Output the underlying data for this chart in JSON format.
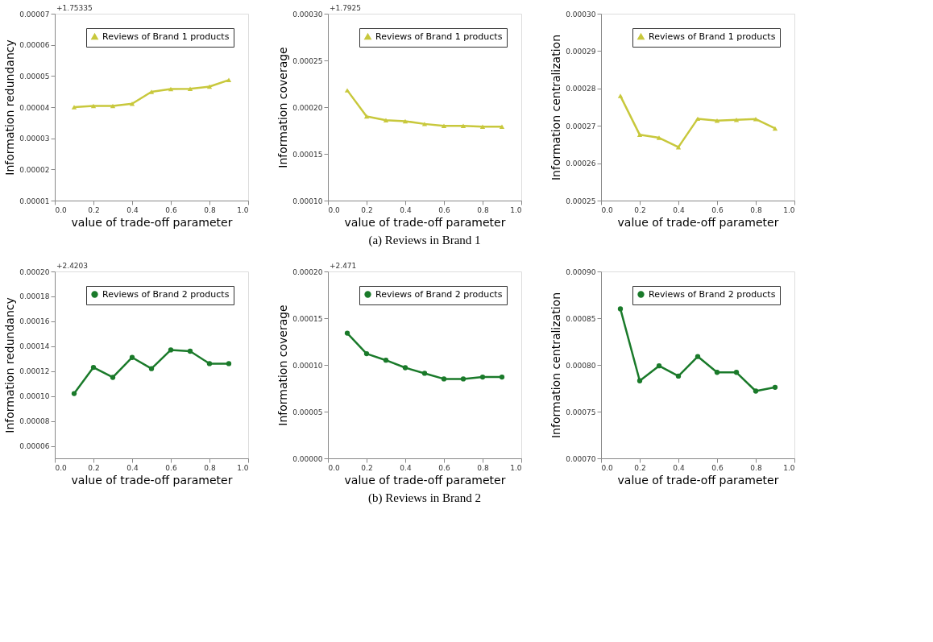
{
  "chart_data": [
    {
      "type": "line",
      "xlabel": "value of trade-off parameter",
      "ylabel": "Information redundancy",
      "annotations": [
        "+1.75335"
      ],
      "x": [
        0.1,
        0.2,
        0.3,
        0.4,
        0.5,
        0.6,
        0.7,
        0.8,
        0.9
      ],
      "series": [
        {
          "name": "Reviews of Brand 1 products",
          "color": "#c8c83c",
          "values": [
            4e-05,
            4.04e-05,
            4.04e-05,
            4.11e-05,
            4.49e-05,
            4.58e-05,
            4.59e-05,
            4.66e-05,
            4.87e-05
          ]
        }
      ],
      "xlim": [
        0,
        1
      ],
      "xticks": [
        {
          "value": 0,
          "label": "0.0"
        },
        {
          "value": 0.2,
          "label": "0.2"
        },
        {
          "value": 0.4,
          "label": "0.4"
        },
        {
          "value": 0.6,
          "label": "0.6"
        },
        {
          "value": 0.8,
          "label": "0.8"
        },
        {
          "value": 1,
          "label": "1.0"
        }
      ],
      "ylim": [
        1e-05,
        7e-05
      ],
      "yticks": [
        {
          "value": 1e-05,
          "label": "0.00001"
        },
        {
          "value": 2e-05,
          "label": "0.00002"
        },
        {
          "value": 3e-05,
          "label": "0.00003"
        },
        {
          "value": 4e-05,
          "label": "0.00004"
        },
        {
          "value": 5e-05,
          "label": "0.00005"
        },
        {
          "value": 6e-05,
          "label": "0.00006"
        },
        {
          "value": 7e-05,
          "label": "0.00007"
        }
      ],
      "grid": false,
      "legend": "top right",
      "marker": "triangle",
      "line_style": "solid"
    },
    {
      "type": "line",
      "title": "(a) Reviews in Brand 1",
      "xlabel": "value of trade-off parameter",
      "ylabel": "Information coverage",
      "annotations": [
        "+1.7925"
      ],
      "x": [
        0.1,
        0.2,
        0.3,
        0.4,
        0.5,
        0.6,
        0.7,
        0.8,
        0.9
      ],
      "series": [
        {
          "name": "Reviews of Brand 1 products",
          "color": "#c8c83c",
          "values": [
            0.000218,
            0.00019,
            0.000186,
            0.000185,
            0.000182,
            0.00018,
            0.00018,
            0.000179,
            0.000179
          ]
        }
      ],
      "xlim": [
        0,
        1
      ],
      "xticks": [
        {
          "value": 0,
          "label": "0.0"
        },
        {
          "value": 0.2,
          "label": "0.2"
        },
        {
          "value": 0.4,
          "label": "0.4"
        },
        {
          "value": 0.6,
          "label": "0.6"
        },
        {
          "value": 0.8,
          "label": "0.8"
        },
        {
          "value": 1,
          "label": "1.0"
        }
      ],
      "ylim": [
        0.0001,
        0.0003
      ],
      "yticks": [
        {
          "value": 0.0001,
          "label": "0.00010"
        },
        {
          "value": 0.00015,
          "label": "0.00015"
        },
        {
          "value": 0.0002,
          "label": "0.00020"
        },
        {
          "value": 0.00025,
          "label": "0.00025"
        },
        {
          "value": 0.0003,
          "label": "0.00030"
        }
      ],
      "grid": false,
      "legend": "top right",
      "marker": "triangle",
      "line_style": "solid"
    },
    {
      "type": "line",
      "xlabel": "value of trade-off parameter",
      "ylabel": "Information centralization",
      "x": [
        0.1,
        0.2,
        0.3,
        0.4,
        0.5,
        0.6,
        0.7,
        0.8,
        0.9
      ],
      "series": [
        {
          "name": "Reviews of Brand 1 products",
          "color": "#c8c83c",
          "values": [
            0.000278,
            0.0002676,
            0.0002668,
            0.0002643,
            0.0002719,
            0.0002714,
            0.0002716,
            0.0002718,
            0.0002693
          ]
        }
      ],
      "xlim": [
        0,
        1
      ],
      "xticks": [
        {
          "value": 0,
          "label": "0.0"
        },
        {
          "value": 0.2,
          "label": "0.2"
        },
        {
          "value": 0.4,
          "label": "0.4"
        },
        {
          "value": 0.6,
          "label": "0.6"
        },
        {
          "value": 0.8,
          "label": "0.8"
        },
        {
          "value": 1,
          "label": "1.0"
        }
      ],
      "ylim": [
        0.00025,
        0.0003
      ],
      "yticks": [
        {
          "value": 0.00025,
          "label": "0.00025"
        },
        {
          "value": 0.00026,
          "label": "0.00026"
        },
        {
          "value": 0.00027,
          "label": "0.00027"
        },
        {
          "value": 0.00028,
          "label": "0.00028"
        },
        {
          "value": 0.00029,
          "label": "0.00029"
        },
        {
          "value": 0.0003,
          "label": "0.00030"
        }
      ],
      "grid": false,
      "legend": "top right",
      "marker": "triangle",
      "line_style": "solid"
    },
    {
      "type": "line",
      "xlabel": "value of trade-off parameter",
      "ylabel": "Information redundancy",
      "annotations": [
        "+2.4203"
      ],
      "x": [
        0.1,
        0.2,
        0.3,
        0.4,
        0.5,
        0.6,
        0.7,
        0.8,
        0.9
      ],
      "series": [
        {
          "name": "Reviews of Brand 2 products",
          "color": "#1a7a2a",
          "values": [
            0.000102,
            0.000123,
            0.000115,
            0.000131,
            0.000122,
            0.000137,
            0.000136,
            0.000126,
            0.000126
          ]
        }
      ],
      "xlim": [
        0,
        1
      ],
      "xticks": [
        {
          "value": 0,
          "label": "0.0"
        },
        {
          "value": 0.2,
          "label": "0.2"
        },
        {
          "value": 0.4,
          "label": "0.4"
        },
        {
          "value": 0.6,
          "label": "0.6"
        },
        {
          "value": 0.8,
          "label": "0.8"
        },
        {
          "value": 1,
          "label": "1.0"
        }
      ],
      "ylim": [
        5e-05,
        0.0002
      ],
      "yticks": [
        {
          "value": 6e-05,
          "label": "0.00006"
        },
        {
          "value": 8e-05,
          "label": "0.00008"
        },
        {
          "value": 0.0001,
          "label": "0.00010"
        },
        {
          "value": 0.00012,
          "label": "0.00012"
        },
        {
          "value": 0.00014,
          "label": "0.00014"
        },
        {
          "value": 0.00016,
          "label": "0.00016"
        },
        {
          "value": 0.00018,
          "label": "0.00018"
        },
        {
          "value": 0.0002,
          "label": "0.00020"
        }
      ],
      "grid": false,
      "legend": "top right",
      "marker": "circle",
      "line_style": "solid"
    },
    {
      "type": "line",
      "title": "(b) Reviews in Brand 2",
      "xlabel": "value of trade-off parameter",
      "ylabel": "Information coverage",
      "annotations": [
        "+2.471"
      ],
      "x": [
        0.1,
        0.2,
        0.3,
        0.4,
        0.5,
        0.6,
        0.7,
        0.8,
        0.9
      ],
      "series": [
        {
          "name": "Reviews of Brand 2 products",
          "color": "#1a7a2a",
          "values": [
            0.000134,
            0.000112,
            0.000105,
            9.7e-05,
            9.1e-05,
            8.5e-05,
            8.5e-05,
            8.7e-05,
            8.7e-05
          ]
        }
      ],
      "xlim": [
        0,
        1
      ],
      "xticks": [
        {
          "value": 0,
          "label": "0.0"
        },
        {
          "value": 0.2,
          "label": "0.2"
        },
        {
          "value": 0.4,
          "label": "0.4"
        },
        {
          "value": 0.6,
          "label": "0.6"
        },
        {
          "value": 0.8,
          "label": "0.8"
        },
        {
          "value": 1,
          "label": "1.0"
        }
      ],
      "ylim": [
        0,
        0.0002
      ],
      "yticks": [
        {
          "value": 0,
          "label": "0.00000"
        },
        {
          "value": 5e-05,
          "label": "0.00005"
        },
        {
          "value": 0.0001,
          "label": "0.00010"
        },
        {
          "value": 0.00015,
          "label": "0.00015"
        },
        {
          "value": 0.0002,
          "label": "0.00020"
        }
      ],
      "grid": false,
      "legend": "top right",
      "marker": "circle",
      "line_style": "solid"
    },
    {
      "type": "line",
      "xlabel": "value of trade-off parameter",
      "ylabel": "Information centralization",
      "x": [
        0.1,
        0.2,
        0.3,
        0.4,
        0.5,
        0.6,
        0.7,
        0.8,
        0.9
      ],
      "series": [
        {
          "name": "Reviews of Brand 2 products",
          "color": "#1a7a2a",
          "values": [
            0.00086,
            0.000783,
            0.000799,
            0.000788,
            0.000809,
            0.000792,
            0.000792,
            0.000772,
            0.000776
          ]
        }
      ],
      "xlim": [
        0,
        1
      ],
      "xticks": [
        {
          "value": 0,
          "label": "0.0"
        },
        {
          "value": 0.2,
          "label": "0.2"
        },
        {
          "value": 0.4,
          "label": "0.4"
        },
        {
          "value": 0.6,
          "label": "0.6"
        },
        {
          "value": 0.8,
          "label": "0.8"
        },
        {
          "value": 1,
          "label": "1.0"
        }
      ],
      "ylim": [
        0.0007,
        0.0009
      ],
      "yticks": [
        {
          "value": 0.0007,
          "label": "0.00070"
        },
        {
          "value": 0.00075,
          "label": "0.00075"
        },
        {
          "value": 0.0008,
          "label": "0.00080"
        },
        {
          "value": 0.00085,
          "label": "0.00085"
        },
        {
          "value": 0.0009,
          "label": "0.00090"
        }
      ],
      "grid": false,
      "legend": "top right",
      "marker": "circle",
      "line_style": "solid"
    }
  ]
}
